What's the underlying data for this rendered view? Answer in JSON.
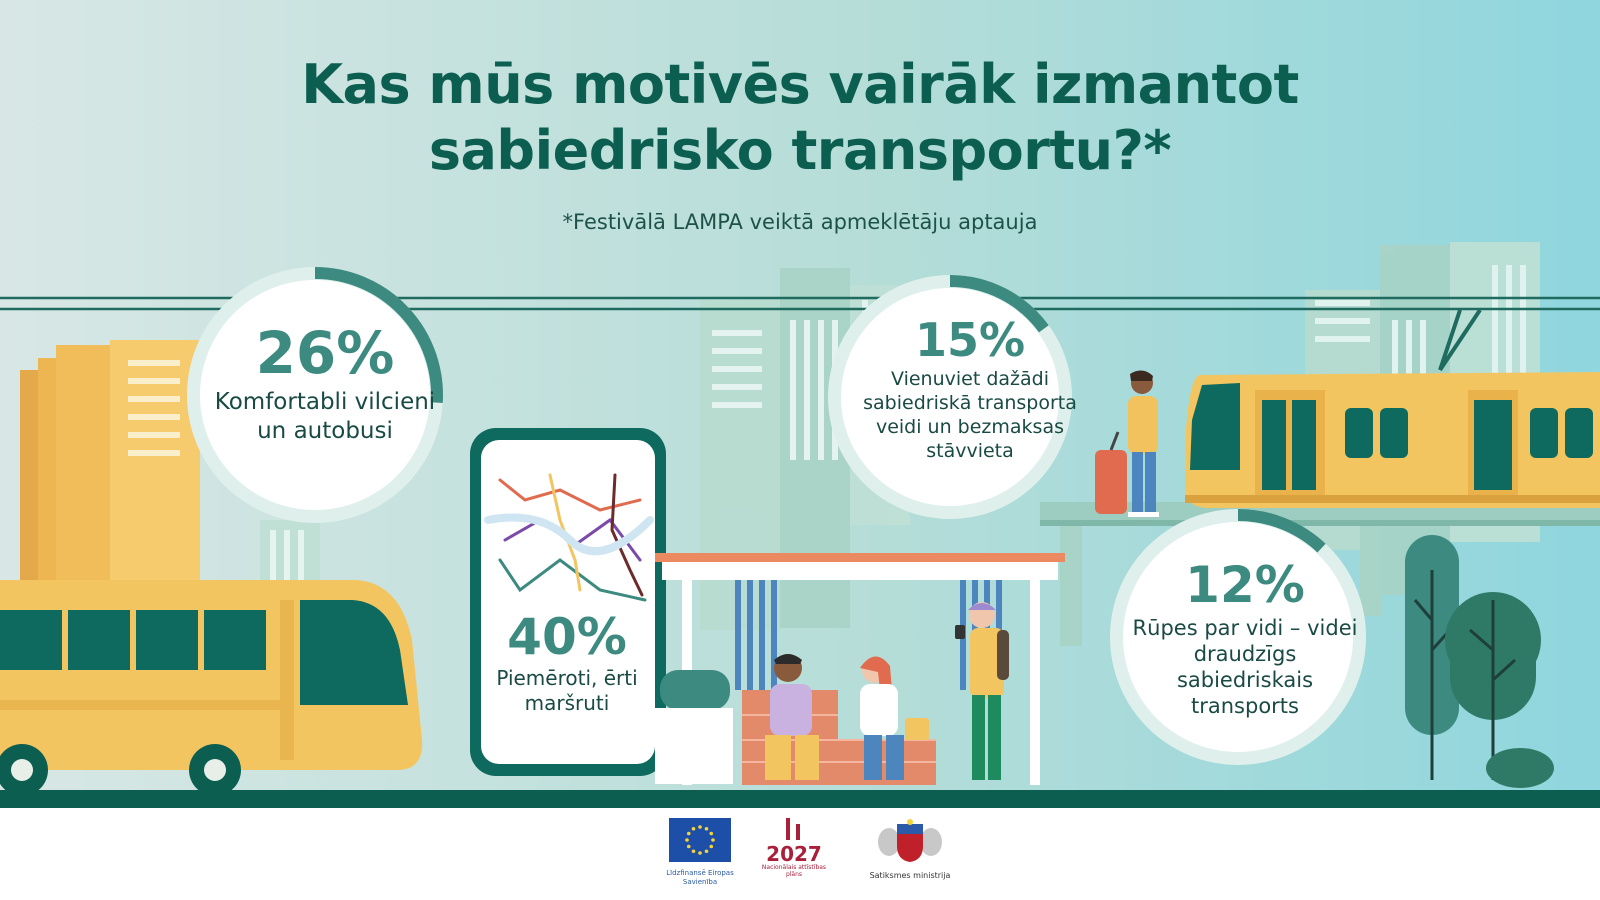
{
  "title_line1": "Kas mūs motivēs vairāk izmantot",
  "title_line2": "sabiedrisko transportu?*",
  "subtitle": "*Festivālā LAMPA veiktā apmeklētāju aptauja",
  "stats": [
    {
      "id": "comfort",
      "percent": "26%",
      "value": 26,
      "label": "Komfortabli vilcieni un autobusi"
    },
    {
      "id": "routes",
      "percent": "40%",
      "value": 40,
      "label": "Piemēroti, ērti maršruti"
    },
    {
      "id": "parking",
      "percent": "15%",
      "value": 15,
      "label": "Vienuviet dažādi sabiedriskā transporta veidi un bezmaksas stāvvieta"
    },
    {
      "id": "environment",
      "percent": "12%",
      "value": 12,
      "label": "Rūpes par vidi – videi draudzīgs sabiedriskais transports"
    }
  ],
  "logos": {
    "eu_caption": "Līdzfinansē Eiropas Savienība",
    "nap_year": "2027",
    "nap_caption": "Nacionālais attīstības plāns",
    "ministry_caption": "Satiksmes ministrija"
  },
  "colors": {
    "title": "#0b5e50",
    "accent": "#3c8a80",
    "vehicle_yellow": "#f3c560",
    "vehicle_dark": "#0e6a5e",
    "ground": "#0b5e50"
  }
}
